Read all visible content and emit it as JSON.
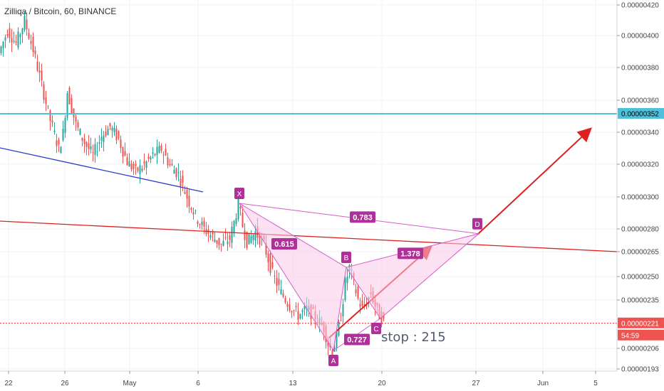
{
  "header": {
    "symbol_title": "Zilliqa / Bitcoin, 60, BINANCE"
  },
  "colors": {
    "up": "#26a69a",
    "down": "#ef5350",
    "pattern_fill": "#f8c8e6",
    "pattern_line": "#d85cc8",
    "label_bg": "#b03099",
    "resistance_line": "#4ec0d9",
    "trend_red": "#e02020",
    "trend_blue": "#2a3dc8"
  },
  "chart_data": {
    "type": "candlestick",
    "symbol": "Zilliqa / Bitcoin",
    "interval": "60",
    "exchange": "BINANCE",
    "x_ticks": [
      "22",
      "26",
      "May",
      "6",
      "13",
      "20",
      "27",
      "Jun",
      "5"
    ],
    "y_ticks": [
      "0.00000420",
      "0.00000400",
      "0.00000380",
      "0.00000360",
      "0.00000340",
      "0.00000320",
      "0.00000300",
      "0.00000280",
      "0.00000265",
      "0.00000250",
      "0.00000235",
      "0.00000206",
      "0.00000193"
    ],
    "price_series": [
      {
        "t": 0,
        "p": 3.9e-06
      },
      {
        "t": 2,
        "p": 4.04e-06
      },
      {
        "t": 4,
        "p": 3.96e-06
      },
      {
        "t": 6,
        "p": 4.1e-06
      },
      {
        "t": 8,
        "p": 3.92e-06
      },
      {
        "t": 10,
        "p": 3.7e-06
      },
      {
        "t": 12,
        "p": 3.48e-06
      },
      {
        "t": 14,
        "p": 3.3e-06
      },
      {
        "t": 15,
        "p": 3.4e-06
      },
      {
        "t": 16,
        "p": 3.66e-06
      },
      {
        "t": 18,
        "p": 3.45e-06
      },
      {
        "t": 20,
        "p": 3.34e-06
      },
      {
        "t": 22,
        "p": 3.26e-06
      },
      {
        "t": 24,
        "p": 3.38e-06
      },
      {
        "t": 26,
        "p": 3.44e-06
      },
      {
        "t": 28,
        "p": 3.36e-06
      },
      {
        "t": 30,
        "p": 3.22e-06
      },
      {
        "t": 32,
        "p": 3.16e-06
      },
      {
        "t": 34,
        "p": 3.2e-06
      },
      {
        "t": 36,
        "p": 3.26e-06
      },
      {
        "t": 38,
        "p": 3.3e-06
      },
      {
        "t": 40,
        "p": 3.2e-06
      },
      {
        "t": 42,
        "p": 3.14e-06
      },
      {
        "t": 44,
        "p": 3e-06
      },
      {
        "t": 46,
        "p": 2.88e-06
      },
      {
        "t": 48,
        "p": 2.8e-06
      },
      {
        "t": 50,
        "p": 2.75e-06
      },
      {
        "t": 52,
        "p": 2.7e-06
      },
      {
        "t": 54,
        "p": 2.74e-06
      },
      {
        "t": 55,
        "p": 2.84e-06
      },
      {
        "t": 56,
        "p": 2.96e-06
      },
      {
        "t": 57,
        "p": 2.82e-06
      },
      {
        "t": 58,
        "p": 2.72e-06
      },
      {
        "t": 60,
        "p": 2.78e-06
      },
      {
        "t": 62,
        "p": 2.7e-06
      },
      {
        "t": 64,
        "p": 2.52e-06
      },
      {
        "t": 66,
        "p": 2.4e-06
      },
      {
        "t": 68,
        "p": 2.32e-06
      },
      {
        "t": 70,
        "p": 2.26e-06
      },
      {
        "t": 72,
        "p": 2.3e-06
      },
      {
        "t": 74,
        "p": 2.25e-06
      },
      {
        "t": 76,
        "p": 2.18e-06
      },
      {
        "t": 77,
        "p": 2.08e-06
      },
      {
        "t": 78,
        "p": 2.04e-06
      },
      {
        "t": 79,
        "p": 2.12e-06
      },
      {
        "t": 80,
        "p": 2.26e-06
      },
      {
        "t": 81,
        "p": 2.46e-06
      },
      {
        "t": 82,
        "p": 2.56e-06
      },
      {
        "t": 83,
        "p": 2.46e-06
      },
      {
        "t": 84,
        "p": 2.36e-06
      },
      {
        "t": 85,
        "p": 2.3e-06
      },
      {
        "t": 86,
        "p": 2.34e-06
      },
      {
        "t": 87,
        "p": 2.4e-06
      },
      {
        "t": 88,
        "p": 2.32e-06
      },
      {
        "t": 89,
        "p": 2.26e-06
      },
      {
        "t": 90,
        "p": 2.22e-06
      }
    ],
    "pattern": {
      "points": [
        {
          "label": "X",
          "t": 56,
          "p": 2.96e-06
        },
        {
          "label": "A",
          "t": 78,
          "p": 2.04e-06
        },
        {
          "label": "B",
          "t": 81,
          "p": 2.56e-06
        },
        {
          "label": "C",
          "t": 89,
          "p": 2.24e-06
        },
        {
          "label": "D",
          "t": 112,
          "p": 2.77e-06
        }
      ],
      "ratios": [
        "0.615",
        "0.783",
        "1.378",
        "0.727"
      ]
    },
    "annotations": {
      "stop_text": "stop : 215",
      "resistance_price": "0.00000352",
      "current_price": "0.00000221",
      "countdown": "54:59"
    }
  }
}
